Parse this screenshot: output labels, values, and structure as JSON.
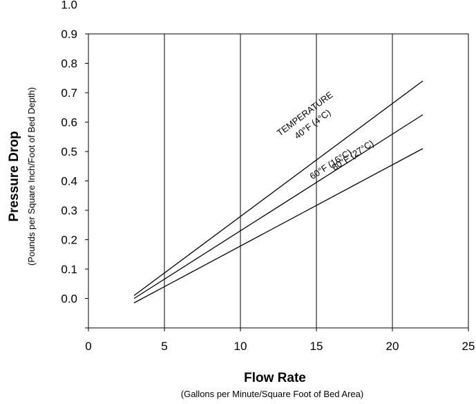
{
  "chart_data": {
    "type": "line",
    "x_axis": {
      "title": "Flow Rate",
      "subtitle": "(Gallons per Minute/Square Foot of Bed Area)",
      "range": [
        0,
        25
      ],
      "ticks": [
        "0",
        "5",
        "10",
        "15",
        "20",
        "25"
      ]
    },
    "y_axis": {
      "title": "Pressure Drop",
      "subtitle": "(Pounds per Square Inch/Foot of Bed Depth)",
      "range": [
        -0.1,
        1.0
      ],
      "ticks": [
        "0.0",
        "0.1",
        "0.2",
        "0.3",
        "0.4",
        "0.5",
        "0.6",
        "0.7",
        "0.8",
        "0.9",
        "1.0"
      ]
    },
    "grid": "vertical",
    "annotation": "TEMPERATURE",
    "series": [
      {
        "name": "40°F (4°C)",
        "x": [
          3,
          22
        ],
        "y": [
          0.01,
          0.74
        ]
      },
      {
        "name": "60°F (16°C)",
        "x": [
          3,
          22
        ],
        "y": [
          0.0,
          0.625
        ]
      },
      {
        "name": "80°F (27°C)",
        "x": [
          3,
          22
        ],
        "y": [
          -0.015,
          0.51
        ]
      }
    ]
  }
}
